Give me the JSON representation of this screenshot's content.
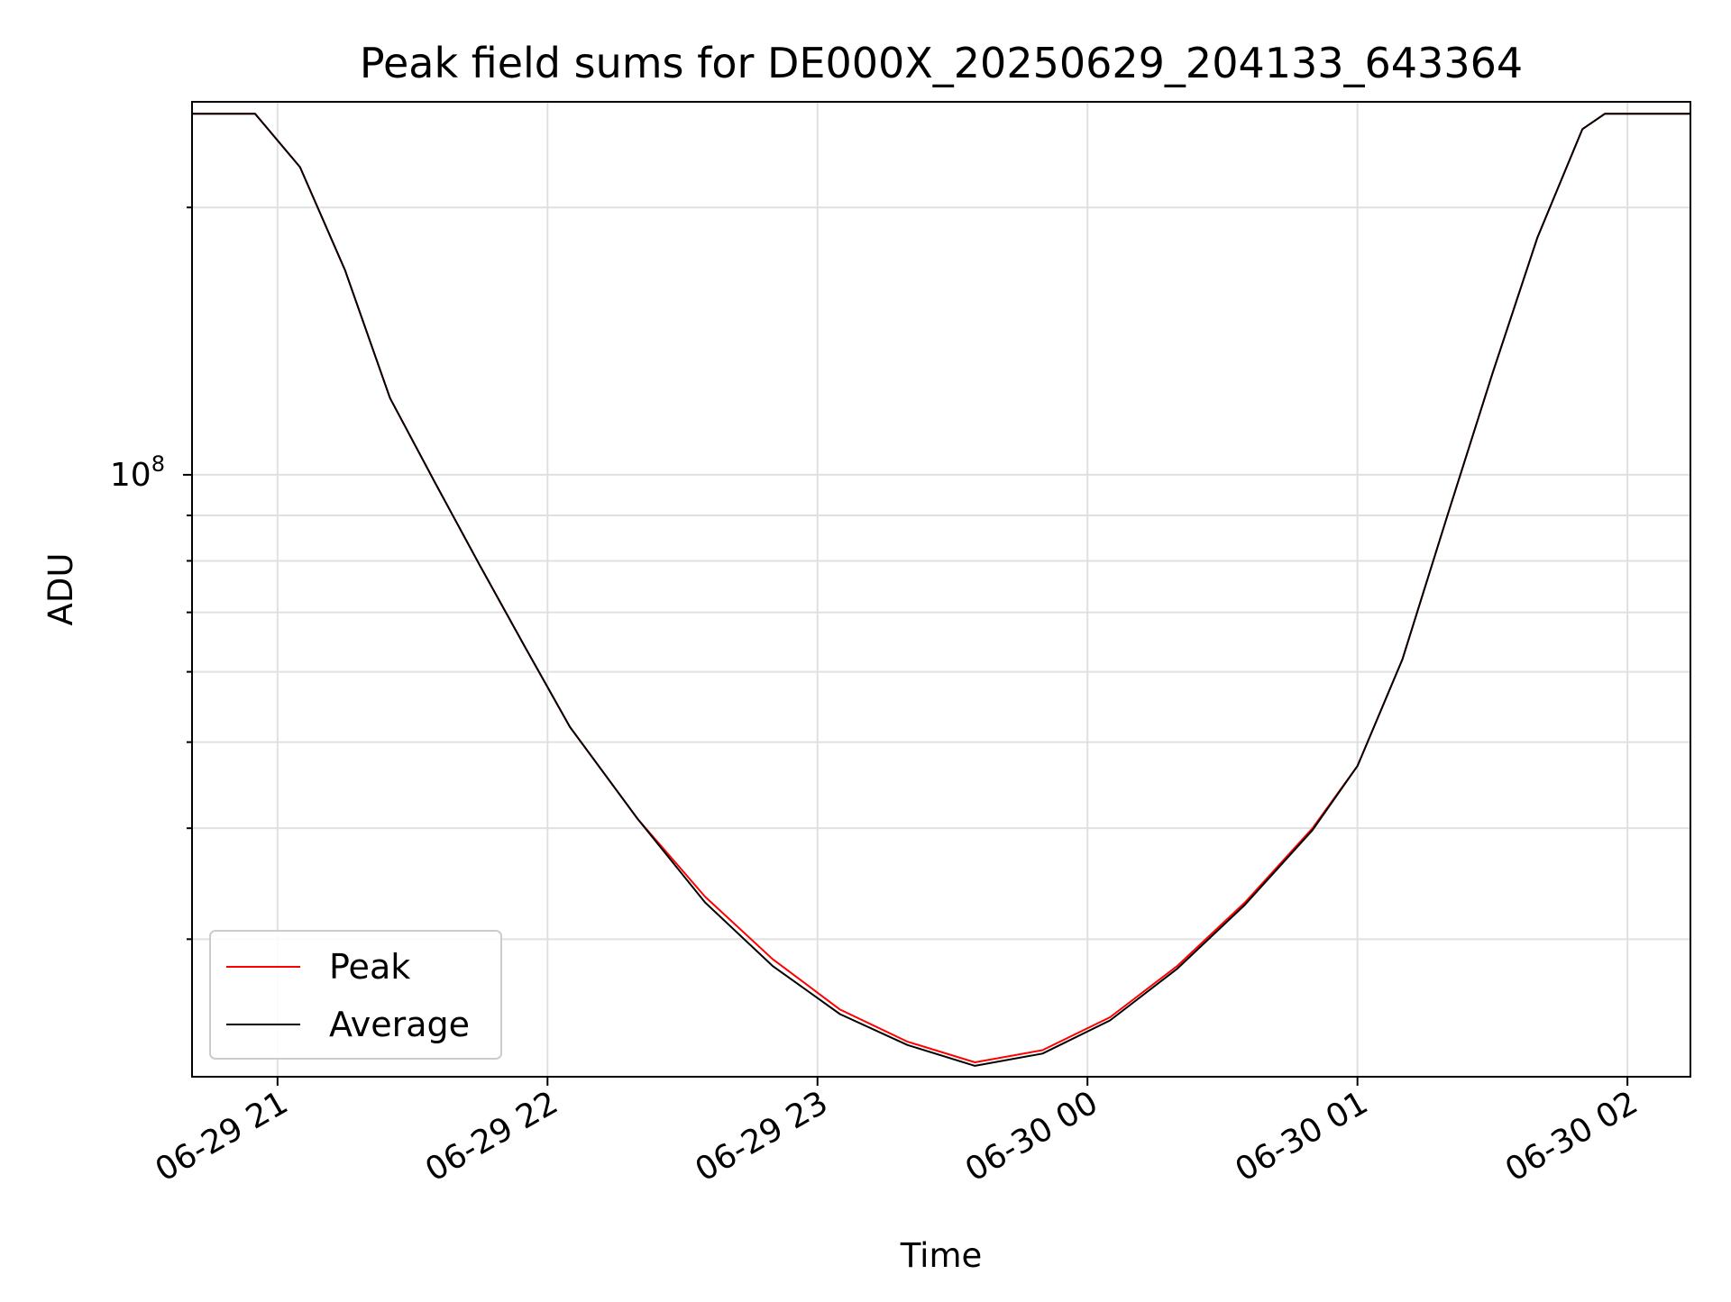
{
  "chart_data": {
    "type": "line",
    "title": "Peak field sums for DE000X_20250629_204133_643364",
    "xlabel": "Time",
    "ylabel": "ADU",
    "y_scale": "log",
    "xlim": [
      "2025-06-29 20:41",
      "2025-06-30 02:14"
    ],
    "ylim": [
      21000000,
      263000000
    ],
    "grid": true,
    "legend_placement": "lower-left",
    "x_tick_labels": [
      "06-29 21",
      "06-29 22",
      "06-29 23",
      "06-30 00",
      "06-30 01",
      "06-30 02"
    ],
    "y_tick_labels": [
      {
        "base": "10",
        "exponent": "8"
      }
    ],
    "series": [
      {
        "name": "Peak",
        "color": "#ff0000",
        "x": [
          "2025-06-29 20:41",
          "2025-06-29 20:55",
          "2025-06-29 21:05",
          "2025-06-29 21:15",
          "2025-06-29 21:25",
          "2025-06-29 21:35",
          "2025-06-29 21:45",
          "2025-06-29 21:55",
          "2025-06-29 22:05",
          "2025-06-29 22:20",
          "2025-06-29 22:35",
          "2025-06-29 22:50",
          "2025-06-29 23:05",
          "2025-06-29 23:20",
          "2025-06-29 23:35",
          "2025-06-29 23:50",
          "2025-06-30 00:05",
          "2025-06-30 00:20",
          "2025-06-30 00:35",
          "2025-06-30 00:50",
          "2025-06-30 01:00",
          "2025-06-30 01:10",
          "2025-06-30 01:20",
          "2025-06-30 01:30",
          "2025-06-30 01:40",
          "2025-06-30 01:50",
          "2025-06-30 01:55",
          "2025-06-30 02:14"
        ],
        "values": [
          255000000,
          255000000,
          222000000,
          170000000,
          122000000,
          98000000,
          79000000,
          64000000,
          52000000,
          41000000,
          33500000,
          28500000,
          25000000,
          23000000,
          21800000,
          22500000,
          24500000,
          28000000,
          33000000,
          40000000,
          47000000,
          62000000,
          90000000,
          130000000,
          185000000,
          245000000,
          255000000,
          255000000
        ]
      },
      {
        "name": "Average",
        "color": "#000000",
        "x": [
          "2025-06-29 20:41",
          "2025-06-29 20:55",
          "2025-06-29 21:05",
          "2025-06-29 21:15",
          "2025-06-29 21:25",
          "2025-06-29 21:35",
          "2025-06-29 21:45",
          "2025-06-29 21:55",
          "2025-06-29 22:05",
          "2025-06-29 22:20",
          "2025-06-29 22:35",
          "2025-06-29 22:50",
          "2025-06-29 23:05",
          "2025-06-29 23:20",
          "2025-06-29 23:35",
          "2025-06-29 23:50",
          "2025-06-30 00:05",
          "2025-06-30 00:20",
          "2025-06-30 00:35",
          "2025-06-30 00:50",
          "2025-06-30 01:00",
          "2025-06-30 01:10",
          "2025-06-30 01:20",
          "2025-06-30 01:30",
          "2025-06-30 01:40",
          "2025-06-30 01:50",
          "2025-06-30 01:55",
          "2025-06-30 02:14"
        ],
        "values": [
          255000000,
          255000000,
          222000000,
          170000000,
          122000000,
          98000000,
          79000000,
          64000000,
          52000000,
          41000000,
          33000000,
          28000000,
          24700000,
          22800000,
          21600000,
          22300000,
          24300000,
          27800000,
          32800000,
          39800000,
          47000000,
          62000000,
          90000000,
          130000000,
          185000000,
          245000000,
          255000000,
          255000000
        ]
      }
    ]
  }
}
